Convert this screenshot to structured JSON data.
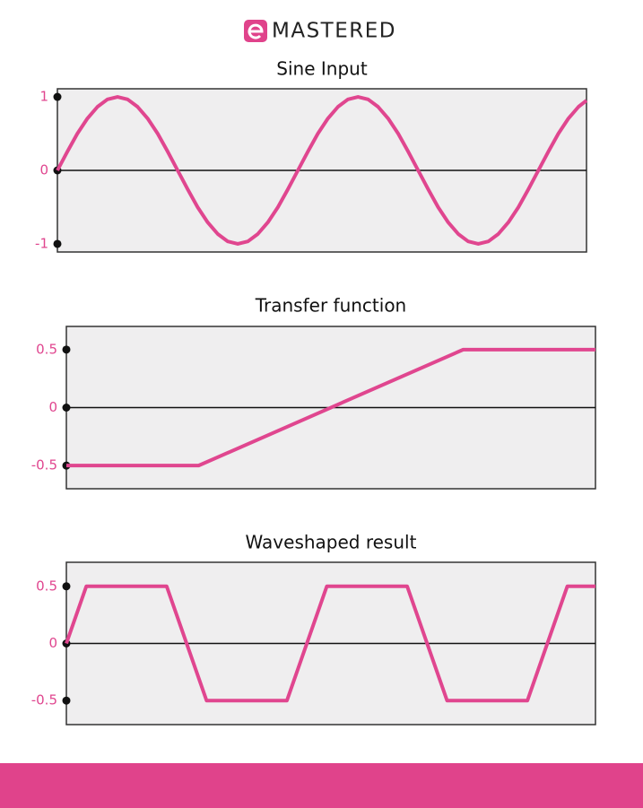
{
  "logo": "MASTERED",
  "chart_data": [
    {
      "type": "line",
      "title": "Sine Input",
      "color": "#e0468f",
      "x": [
        0,
        0.042,
        0.083,
        0.125,
        0.167,
        0.208,
        0.25,
        0.292,
        0.333,
        0.375,
        0.417,
        0.458,
        0.5,
        0.542,
        0.583,
        0.625,
        0.667,
        0.708,
        0.75,
        0.792,
        0.833,
        0.875,
        0.917,
        0.958,
        1,
        1.042,
        1.083,
        1.125,
        1.167,
        1.208,
        1.25,
        1.292,
        1.333,
        1.375,
        1.417,
        1.458,
        1.5,
        1.542,
        1.583,
        1.625,
        1.667,
        1.708,
        1.75,
        1.792,
        1.833,
        1.875,
        1.917,
        1.958,
        2,
        2.042,
        2.083,
        2.125,
        2.167,
        2.2
      ],
      "values": [
        0,
        0.259,
        0.5,
        0.707,
        0.866,
        0.966,
        1,
        0.966,
        0.866,
        0.707,
        0.5,
        0.259,
        0,
        -0.259,
        -0.5,
        -0.707,
        -0.866,
        -0.966,
        -1,
        -0.966,
        -0.866,
        -0.707,
        -0.5,
        -0.259,
        0,
        0.259,
        0.5,
        0.707,
        0.866,
        0.966,
        1,
        0.966,
        0.866,
        0.707,
        0.5,
        0.259,
        0,
        -0.259,
        -0.5,
        -0.707,
        -0.866,
        -0.966,
        -1,
        -0.966,
        -0.866,
        -0.707,
        -0.5,
        -0.259,
        0,
        0.259,
        0.5,
        0.707,
        0.866,
        0.951
      ],
      "xlim": [
        0,
        2.2
      ],
      "ylim": [
        -1.11,
        1.11
      ],
      "yticks": [
        -1,
        0,
        1
      ]
    },
    {
      "type": "line",
      "title": "Transfer function",
      "color": "#e0468f",
      "x": [
        -1,
        -0.5,
        0.5,
        1
      ],
      "values": [
        -0.5,
        -0.5,
        0.5,
        0.5
      ],
      "xlim": [
        -1,
        1
      ],
      "ylim": [
        -0.7,
        0.7
      ],
      "yticks": [
        -0.5,
        0,
        0.5
      ]
    },
    {
      "type": "line",
      "title": "Waveshaped result",
      "color": "#e0468f",
      "x": [
        0,
        0.083,
        0.417,
        0.583,
        0.917,
        1.083,
        1.417,
        1.583,
        1.917,
        2.083,
        2.2
      ],
      "values": [
        0,
        0.5,
        0.5,
        -0.5,
        -0.5,
        0.5,
        0.5,
        -0.5,
        -0.5,
        0.5,
        0.5
      ],
      "xlim": [
        0,
        2.2
      ],
      "ylim": [
        -0.71,
        0.71
      ],
      "yticks": [
        -0.5,
        0,
        0.5
      ]
    }
  ]
}
